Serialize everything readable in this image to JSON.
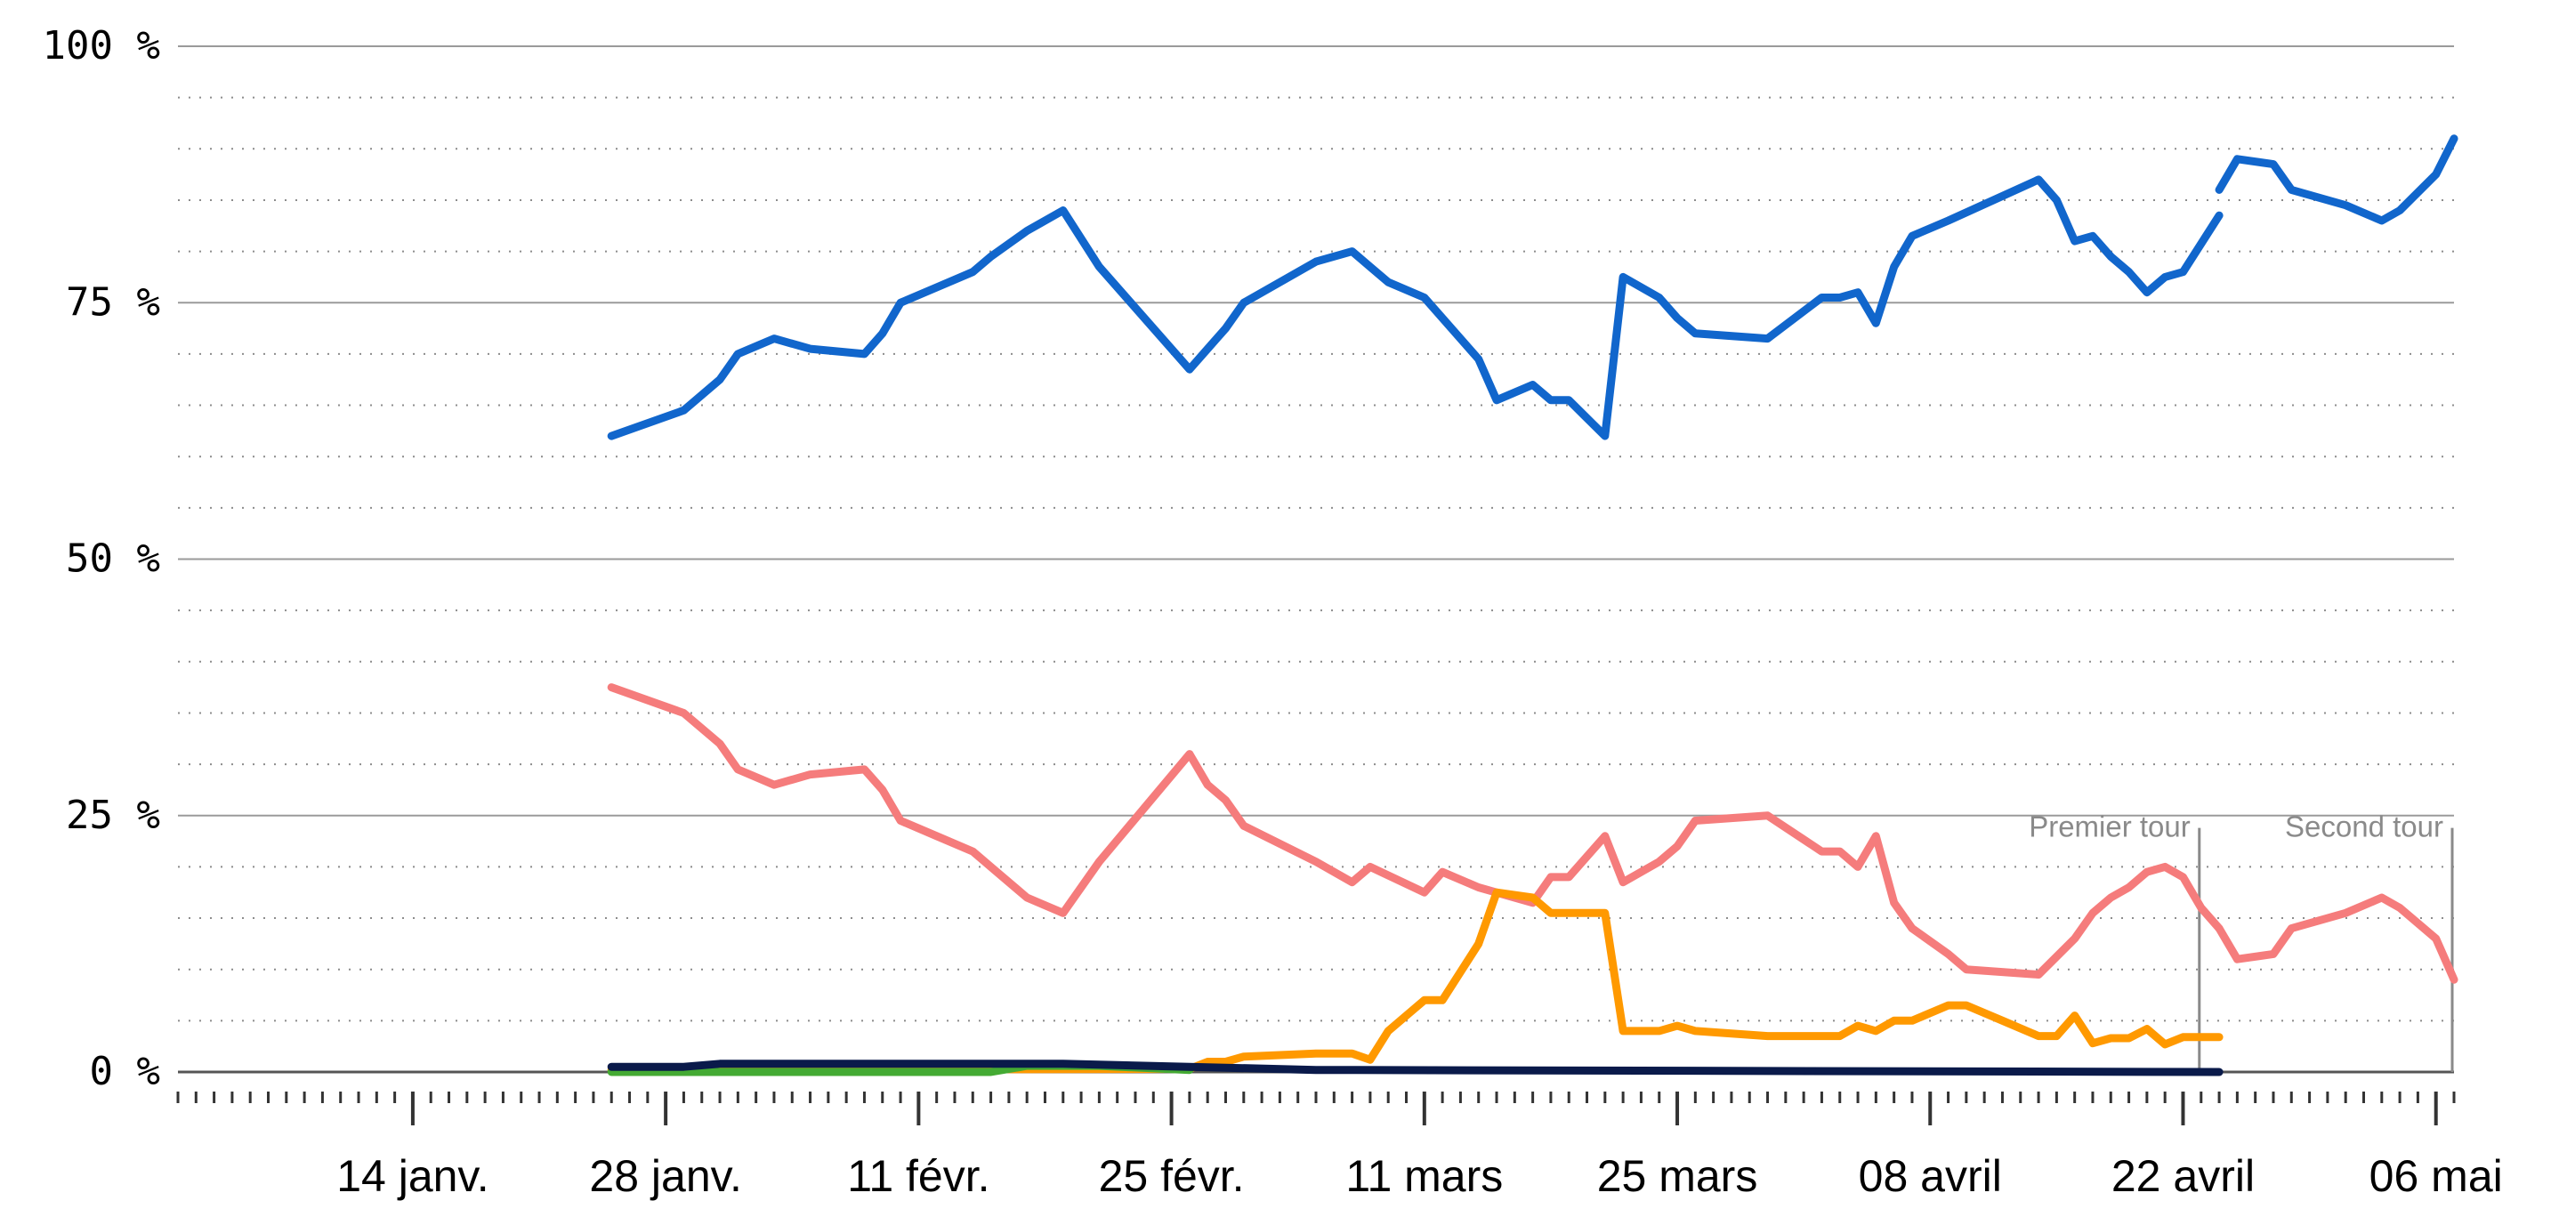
{
  "chart_data": {
    "type": "line",
    "title": "",
    "xlabel": "",
    "ylabel": "",
    "ylim": [
      0,
      100
    ],
    "xlim": [
      "2017-01-01",
      "2017-05-07"
    ],
    "grid": "y",
    "y_ticks": [
      {
        "value": 0,
        "label": "0 %"
      },
      {
        "value": 25,
        "label": "25 %"
      },
      {
        "value": 50,
        "label": "50 %"
      },
      {
        "value": 75,
        "label": "75 %"
      },
      {
        "value": 100,
        "label": "100 %"
      }
    ],
    "x_ticks": [
      {
        "date": "2017-01-14",
        "label": "14 janv."
      },
      {
        "date": "2017-01-28",
        "label": "28 janv."
      },
      {
        "date": "2017-02-11",
        "label": "11 févr."
      },
      {
        "date": "2017-02-25",
        "label": "25 févr."
      },
      {
        "date": "2017-03-11",
        "label": "11 mars"
      },
      {
        "date": "2017-03-25",
        "label": "25 mars"
      },
      {
        "date": "2017-04-08",
        "label": "08 avril"
      },
      {
        "date": "2017-04-22",
        "label": "22 avril"
      },
      {
        "date": "2017-05-06",
        "label": "06 mai"
      }
    ],
    "annotations": [
      {
        "label": "Premier tour",
        "date": "2017-04-23",
        "text_anchor": "end"
      },
      {
        "label": "Second tour",
        "date": "2017-05-07",
        "text_anchor": "end"
      }
    ],
    "series": [
      {
        "color": "#1166cc",
        "segments": [
          [
            [
              "2017-01-25",
              62
            ],
            [
              "2017-01-29",
              64.5
            ],
            [
              "2017-01-31",
              67.5
            ],
            [
              "2017-02-01",
              70
            ],
            [
              "2017-02-03",
              71.5
            ],
            [
              "2017-02-05",
              70.5
            ],
            [
              "2017-02-08",
              70
            ],
            [
              "2017-02-09",
              72
            ],
            [
              "2017-02-10",
              75
            ],
            [
              "2017-02-12",
              76.5
            ],
            [
              "2017-02-14",
              78
            ],
            [
              "2017-02-15",
              79.5
            ],
            [
              "2017-02-17",
              82
            ],
            [
              "2017-02-19",
              84
            ],
            [
              "2017-02-21",
              78.5
            ],
            [
              "2017-02-26",
              68.5
            ],
            [
              "2017-02-27",
              70.5
            ],
            [
              "2017-02-28",
              72.5
            ],
            [
              "2017-03-01",
              75
            ],
            [
              "2017-03-05",
              79
            ],
            [
              "2017-03-07",
              80
            ],
            [
              "2017-03-08",
              78.5
            ],
            [
              "2017-03-09",
              77
            ],
            [
              "2017-03-11",
              75.5
            ],
            [
              "2017-03-14",
              69.5
            ],
            [
              "2017-03-15",
              65.5
            ],
            [
              "2017-03-17",
              67
            ],
            [
              "2017-03-18",
              65.5
            ],
            [
              "2017-03-19",
              65.5
            ],
            [
              "2017-03-21",
              62
            ],
            [
              "2017-03-22",
              77.5
            ],
            [
              "2017-03-24",
              75.5
            ],
            [
              "2017-03-25",
              73.5
            ],
            [
              "2017-03-26",
              72
            ],
            [
              "2017-03-30",
              71.5
            ],
            [
              "2017-04-02",
              75.5
            ],
            [
              "2017-04-03",
              75.5
            ],
            [
              "2017-04-04",
              76
            ],
            [
              "2017-04-05",
              73
            ],
            [
              "2017-04-06",
              78.5
            ],
            [
              "2017-04-07",
              81.5
            ],
            [
              "2017-04-09",
              83
            ],
            [
              "2017-04-14",
              87
            ],
            [
              "2017-04-15",
              85
            ],
            [
              "2017-04-16",
              81
            ],
            [
              "2017-04-17",
              81.5
            ],
            [
              "2017-04-18",
              79.5
            ],
            [
              "2017-04-19",
              78
            ],
            [
              "2017-04-20",
              76
            ],
            [
              "2017-04-21",
              77.5
            ],
            [
              "2017-04-22",
              78
            ],
            [
              "2017-04-24",
              83.5
            ]
          ],
          [
            [
              "2017-04-24",
              86
            ],
            [
              "2017-04-25",
              89
            ],
            [
              "2017-04-27",
              88.5
            ],
            [
              "2017-04-28",
              86
            ],
            [
              "2017-05-01",
              84.5
            ],
            [
              "2017-05-03",
              83
            ],
            [
              "2017-05-04",
              84
            ],
            [
              "2017-05-06",
              87.5
            ],
            [
              "2017-05-07",
              91
            ]
          ]
        ]
      },
      {
        "color": "#f57c7c",
        "segments": [
          [
            [
              "2017-01-25",
              37.5
            ],
            [
              "2017-01-29",
              35
            ],
            [
              "2017-01-31",
              32
            ],
            [
              "2017-02-01",
              29.5
            ],
            [
              "2017-02-03",
              28
            ],
            [
              "2017-02-05",
              29
            ],
            [
              "2017-02-08",
              29.5
            ],
            [
              "2017-02-09",
              27.5
            ],
            [
              "2017-02-10",
              24.5
            ],
            [
              "2017-02-12",
              23
            ],
            [
              "2017-02-14",
              21.5
            ],
            [
              "2017-02-15",
              20
            ],
            [
              "2017-02-17",
              17
            ],
            [
              "2017-02-19",
              15.5
            ],
            [
              "2017-02-21",
              20.5
            ],
            [
              "2017-02-26",
              31
            ],
            [
              "2017-02-27",
              28
            ],
            [
              "2017-02-28",
              26.5
            ],
            [
              "2017-03-01",
              24
            ],
            [
              "2017-03-05",
              20.5
            ],
            [
              "2017-03-07",
              18.5
            ],
            [
              "2017-03-08",
              20
            ],
            [
              "2017-03-11",
              17.5
            ],
            [
              "2017-03-12",
              19.5
            ],
            [
              "2017-03-14",
              18
            ],
            [
              "2017-03-17",
              16.5
            ],
            [
              "2017-03-18",
              19
            ],
            [
              "2017-03-19",
              19
            ],
            [
              "2017-03-21",
              23
            ],
            [
              "2017-03-22",
              18.5
            ],
            [
              "2017-03-24",
              20.5
            ],
            [
              "2017-03-25",
              22
            ],
            [
              "2017-03-26",
              24.5
            ],
            [
              "2017-03-30",
              25
            ],
            [
              "2017-04-02",
              21.5
            ],
            [
              "2017-04-03",
              21.5
            ],
            [
              "2017-04-04",
              20
            ],
            [
              "2017-04-05",
              23
            ],
            [
              "2017-04-06",
              16.5
            ],
            [
              "2017-04-07",
              14
            ],
            [
              "2017-04-09",
              11.5
            ],
            [
              "2017-04-10",
              10
            ],
            [
              "2017-04-14",
              9.5
            ],
            [
              "2017-04-16",
              13
            ],
            [
              "2017-04-17",
              15.5
            ],
            [
              "2017-04-18",
              17
            ],
            [
              "2017-04-19",
              18
            ],
            [
              "2017-04-20",
              19.5
            ],
            [
              "2017-04-21",
              20
            ],
            [
              "2017-04-22",
              19
            ],
            [
              "2017-04-23",
              16
            ],
            [
              "2017-04-24",
              14
            ]
          ],
          [
            [
              "2017-04-24",
              14
            ],
            [
              "2017-04-25",
              11
            ],
            [
              "2017-04-27",
              11.5
            ],
            [
              "2017-04-28",
              14
            ],
            [
              "2017-05-01",
              15.5
            ],
            [
              "2017-05-03",
              17
            ],
            [
              "2017-05-04",
              16
            ],
            [
              "2017-05-06",
              13
            ],
            [
              "2017-05-07",
              9
            ]
          ]
        ]
      },
      {
        "color": "#ff9900",
        "segments": [
          [
            [
              "2017-01-25",
              0.2
            ],
            [
              "2017-02-26",
              0.3
            ],
            [
              "2017-02-27",
              1
            ],
            [
              "2017-02-28",
              1
            ],
            [
              "2017-03-01",
              1.5
            ],
            [
              "2017-03-05",
              1.8
            ],
            [
              "2017-03-07",
              1.8
            ],
            [
              "2017-03-08",
              1.2
            ],
            [
              "2017-03-09",
              4
            ],
            [
              "2017-03-11",
              7
            ],
            [
              "2017-03-12",
              7
            ],
            [
              "2017-03-14",
              12.5
            ],
            [
              "2017-03-15",
              17.5
            ],
            [
              "2017-03-17",
              17
            ],
            [
              "2017-03-18",
              15.5
            ],
            [
              "2017-03-21",
              15.5
            ],
            [
              "2017-03-22",
              4
            ],
            [
              "2017-03-24",
              4
            ],
            [
              "2017-03-25",
              4.5
            ],
            [
              "2017-03-26",
              4
            ],
            [
              "2017-03-30",
              3.5
            ],
            [
              "2017-04-03",
              3.5
            ],
            [
              "2017-04-04",
              4.5
            ],
            [
              "2017-04-05",
              4
            ],
            [
              "2017-04-06",
              5
            ],
            [
              "2017-04-07",
              5
            ],
            [
              "2017-04-09",
              6.5
            ],
            [
              "2017-04-10",
              6.5
            ],
            [
              "2017-04-12",
              5
            ],
            [
              "2017-04-14",
              3.5
            ],
            [
              "2017-04-15",
              3.5
            ],
            [
              "2017-04-16",
              5.5
            ],
            [
              "2017-04-17",
              2.8
            ],
            [
              "2017-04-18",
              3.3
            ],
            [
              "2017-04-19",
              3.3
            ],
            [
              "2017-04-20",
              4.2
            ],
            [
              "2017-04-21",
              2.7
            ],
            [
              "2017-04-22",
              3.4
            ],
            [
              "2017-04-24",
              3.4
            ]
          ]
        ]
      },
      {
        "color": "#44aa33",
        "segments": [
          [
            [
              "2017-01-25",
              0
            ],
            [
              "2017-02-15",
              0
            ],
            [
              "2017-02-17",
              0.6
            ],
            [
              "2017-02-21",
              0.6
            ],
            [
              "2017-02-26",
              0.2
            ]
          ]
        ]
      },
      {
        "color": "#0a1a4a",
        "segments": [
          [
            [
              "2017-01-25",
              0.5
            ],
            [
              "2017-01-29",
              0.5
            ],
            [
              "2017-01-31",
              0.8
            ],
            [
              "2017-02-19",
              0.8
            ],
            [
              "2017-02-26",
              0.5
            ],
            [
              "2017-03-05",
              0.2
            ],
            [
              "2017-04-24",
              0
            ]
          ]
        ]
      }
    ]
  }
}
